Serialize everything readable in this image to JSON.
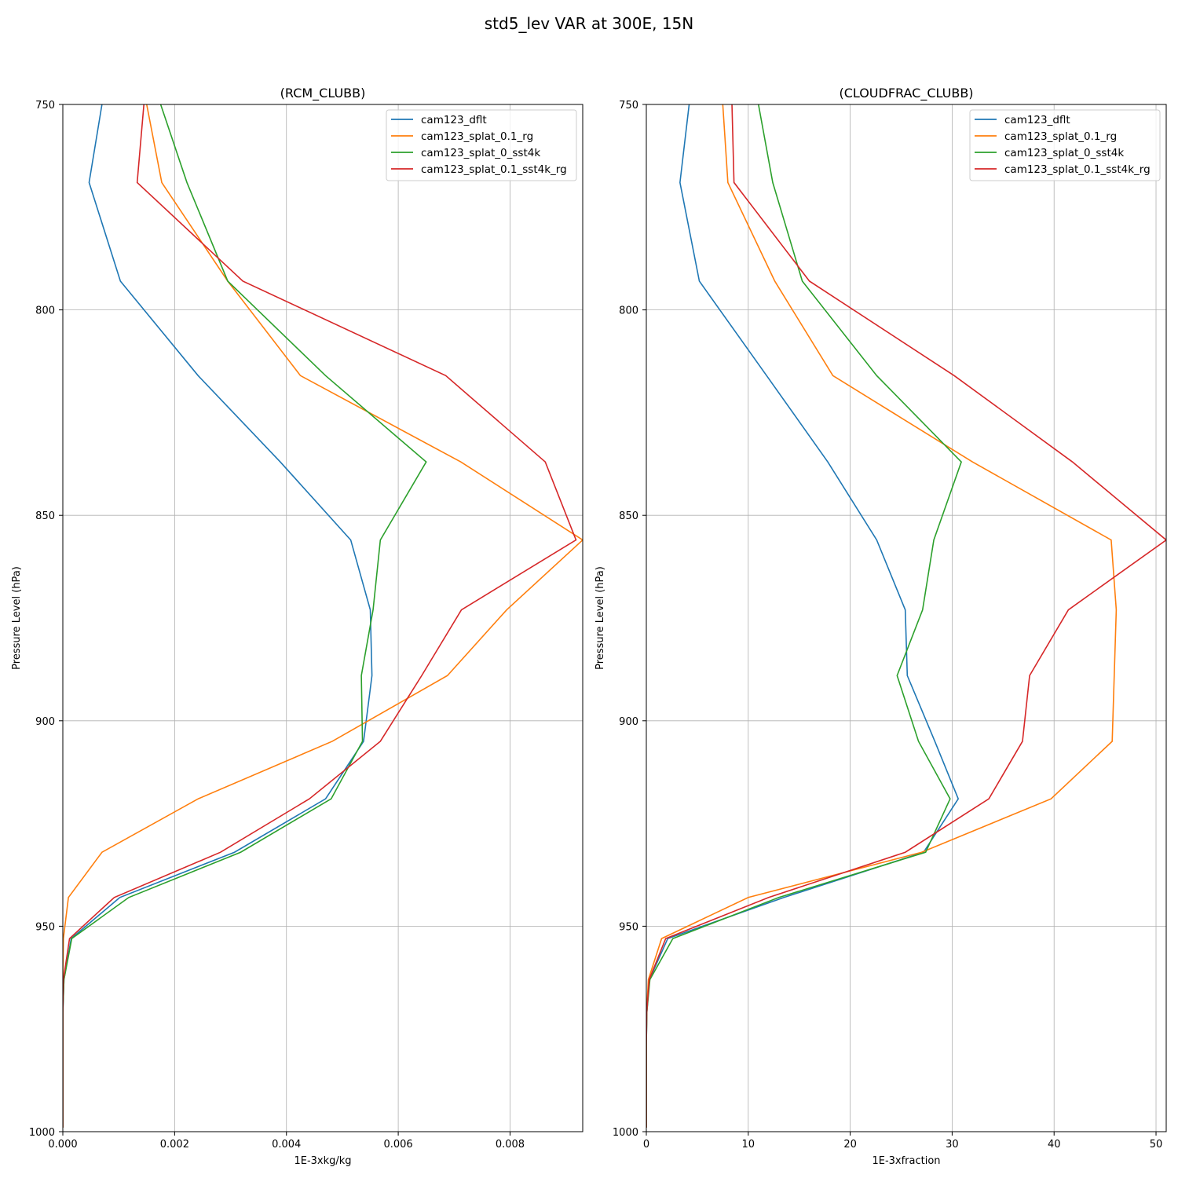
{
  "figure": {
    "suptitle": "std5_lev VAR at 300E, 15N"
  },
  "chart_data": [
    {
      "type": "line",
      "orientation": "vertical-profile",
      "title": "(RCM_CLUBB)",
      "xlabel": "1E-3xkg/kg",
      "ylabel": "Pressure Level (hPa)",
      "xlim": [
        0,
        0.0093
      ],
      "ylim": [
        1000,
        750
      ],
      "y_inverted": true,
      "grid": true,
      "legend_position": "upper right",
      "xticks": [
        "0.000",
        "0.002",
        "0.004",
        "0.006",
        "0.008"
      ],
      "yticks": [
        "750",
        "800",
        "850",
        "900",
        "950",
        "1000"
      ],
      "y": [
        750,
        769,
        793,
        816,
        837,
        856,
        873,
        889,
        905,
        919,
        932,
        943,
        953,
        963,
        971,
        979,
        985,
        990,
        994,
        997,
        999
      ],
      "series": [
        {
          "name": "cam123_dflt",
          "color": "#1f77b4",
          "values": [
            0.0007,
            0.00047,
            0.00103,
            0.00242,
            0.00389,
            0.00515,
            0.0055,
            0.00553,
            0.00538,
            0.0047,
            0.00307,
            0.00102,
            0.00015,
            2e-05,
            0,
            0,
            0,
            0,
            0,
            0,
            0
          ]
        },
        {
          "name": "cam123_splat_0.1_rg",
          "color": "#ff7f0e",
          "values": [
            0.0015,
            0.00177,
            0.00295,
            0.00425,
            0.00712,
            0.0093,
            0.00794,
            0.00688,
            0.00482,
            0.00242,
            0.0007,
            0.0001,
            1e-05,
            0,
            0,
            0,
            0,
            0,
            0,
            0,
            0
          ]
        },
        {
          "name": "cam123_splat_0_sst4k",
          "color": "#2ca02c",
          "values": [
            0.00175,
            0.00222,
            0.00295,
            0.0047,
            0.0065,
            0.00568,
            0.00555,
            0.00534,
            0.00536,
            0.0048,
            0.00318,
            0.00118,
            0.00016,
            2e-05,
            0,
            0,
            0,
            0,
            0,
            0,
            0
          ]
        },
        {
          "name": "cam123_splat_0.1_sst4k_rg",
          "color": "#d62728",
          "values": [
            0.00145,
            0.00133,
            0.00322,
            0.00685,
            0.00863,
            0.00918,
            0.00713,
            0.00642,
            0.00568,
            0.00441,
            0.00282,
            0.00092,
            0.00012,
            1e-05,
            0,
            0,
            0,
            0,
            0,
            0,
            0
          ]
        }
      ]
    },
    {
      "type": "line",
      "orientation": "vertical-profile",
      "title": "(CLOUDFRAC_CLUBB)",
      "xlabel": "1E-3xfraction",
      "ylabel": "Pressure Level (hPa)",
      "xlim": [
        0,
        51
      ],
      "ylim": [
        1000,
        750
      ],
      "y_inverted": true,
      "grid": true,
      "legend_position": "upper right",
      "xticks": [
        "0",
        "10",
        "20",
        "30",
        "40",
        "50"
      ],
      "yticks": [
        "750",
        "800",
        "850",
        "900",
        "950",
        "1000"
      ],
      "y": [
        750,
        769,
        793,
        816,
        837,
        856,
        873,
        889,
        905,
        919,
        932,
        943,
        953,
        963,
        971,
        979,
        985,
        990,
        994,
        997,
        999
      ],
      "series": [
        {
          "name": "cam123_dflt",
          "color": "#1f77b4",
          "values": [
            4.2,
            3.3,
            5.2,
            11.8,
            17.8,
            22.6,
            25.4,
            25.6,
            28.3,
            30.6,
            27.2,
            13.5,
            2.1,
            0.3,
            0.05,
            0,
            0,
            0,
            0,
            0,
            0
          ]
        },
        {
          "name": "cam123_splat_0.1_rg",
          "color": "#ff7f0e",
          "values": [
            7.5,
            8.0,
            12.6,
            18.3,
            32.0,
            45.6,
            46.1,
            45.9,
            45.7,
            39.7,
            27.0,
            10.0,
            1.5,
            0.2,
            0.03,
            0,
            0,
            0,
            0,
            0,
            0
          ]
        },
        {
          "name": "cam123_splat_0_sst4k",
          "color": "#2ca02c",
          "values": [
            11.0,
            12.4,
            15.3,
            22.6,
            30.9,
            28.2,
            27.1,
            24.6,
            26.7,
            29.8,
            27.4,
            13.0,
            2.6,
            0.35,
            0.05,
            0,
            0,
            0,
            0,
            0,
            0
          ]
        },
        {
          "name": "cam123_splat_0.1_sst4k_rg",
          "color": "#d62728",
          "values": [
            8.4,
            8.6,
            16.0,
            30.2,
            41.8,
            51.0,
            41.4,
            37.6,
            36.9,
            33.6,
            25.4,
            12.0,
            1.9,
            0.28,
            0.04,
            0,
            0,
            0,
            0,
            0,
            0
          ]
        }
      ]
    }
  ]
}
